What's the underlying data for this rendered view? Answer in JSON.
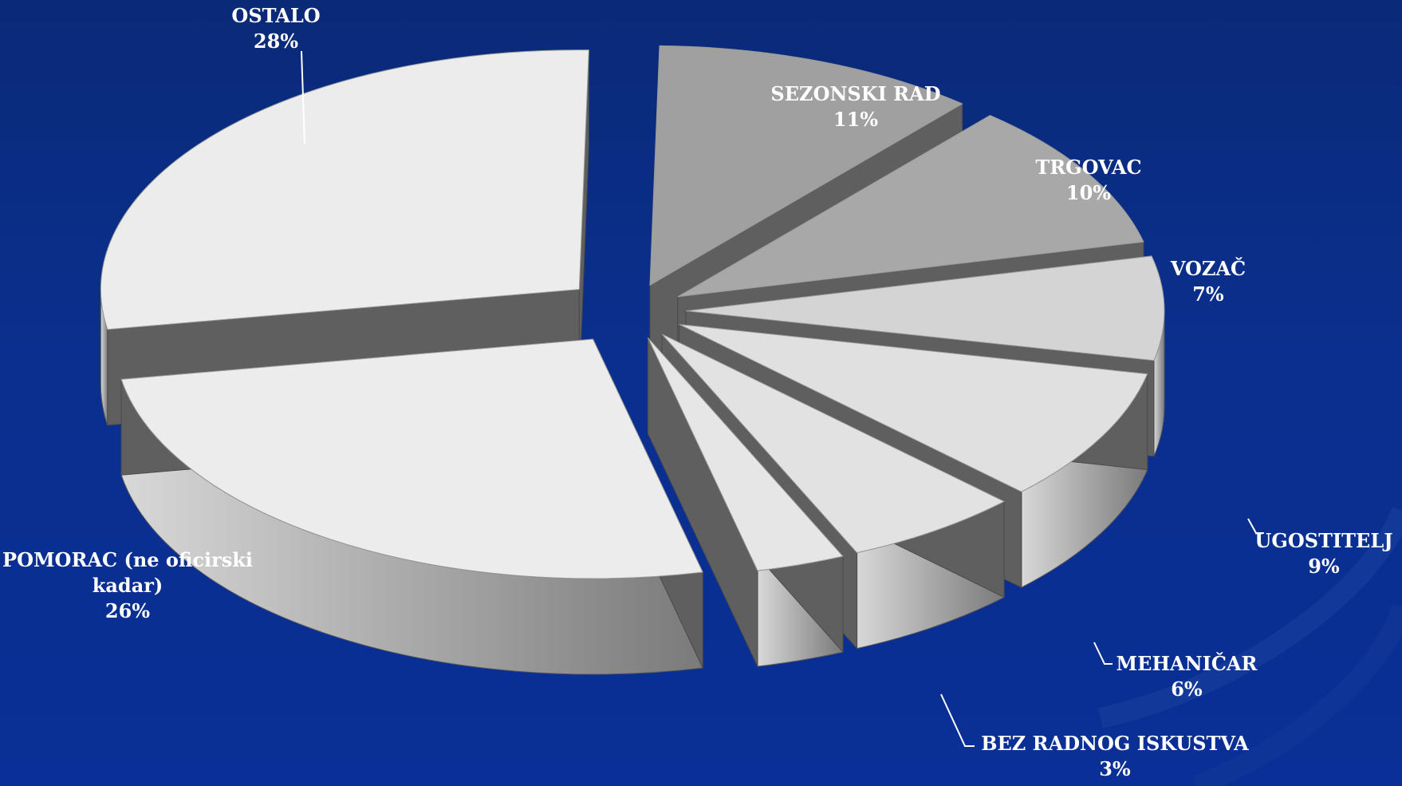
{
  "chart_data": {
    "type": "pie",
    "style": "3d-exploded",
    "slices": [
      {
        "label": "OSTALO",
        "value": 28,
        "value_text": "28%",
        "color": "#ececec"
      },
      {
        "label": "POMORAC (ne oficirski kadar)",
        "label_lines": [
          "POMORAC (ne oficirski",
          "kadar)"
        ],
        "value": 26,
        "value_text": "26%",
        "color": "#ececec"
      },
      {
        "label": "SEZONSKI RAD",
        "value": 11,
        "value_text": "11%",
        "color": "#a0a0a0"
      },
      {
        "label": "TRGOVAC",
        "value": 10,
        "value_text": "10%",
        "color": "#a8a8a8"
      },
      {
        "label": "VOZAČ",
        "value": 7,
        "value_text": "7%",
        "color": "#d4d4d4"
      },
      {
        "label": "UGOSTITELJ",
        "value": 9,
        "value_text": "9%",
        "color": "#e0e0e0"
      },
      {
        "label": "MEHANIČAR",
        "value": 6,
        "value_text": "6%",
        "color": "#e2e2e2"
      },
      {
        "label": "BEZ RADNOG ISKUSTVA",
        "value": 3,
        "value_text": "3%",
        "color": "#e6e6e6"
      }
    ]
  }
}
